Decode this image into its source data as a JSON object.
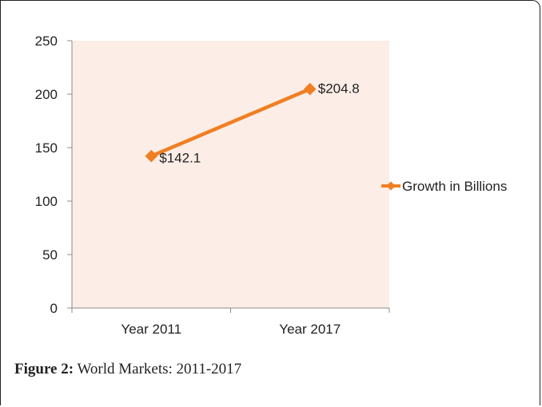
{
  "chart_data": {
    "type": "line",
    "categories": [
      "Year 2011",
      "Year 2017"
    ],
    "series": [
      {
        "name": "Growth in Billions",
        "values": [
          142.1,
          204.8
        ]
      }
    ],
    "data_labels": [
      "$142.1",
      "$204.8"
    ],
    "ylim": [
      0,
      250
    ],
    "yticks": [
      0,
      50,
      100,
      150,
      200,
      250
    ],
    "grid": false,
    "legend": "right",
    "colors": {
      "series": "#F07F22",
      "plot_bg": "#FCEDE6"
    }
  },
  "caption": {
    "label": "Figure 2:",
    "text": "World Markets: 2011-2017"
  }
}
